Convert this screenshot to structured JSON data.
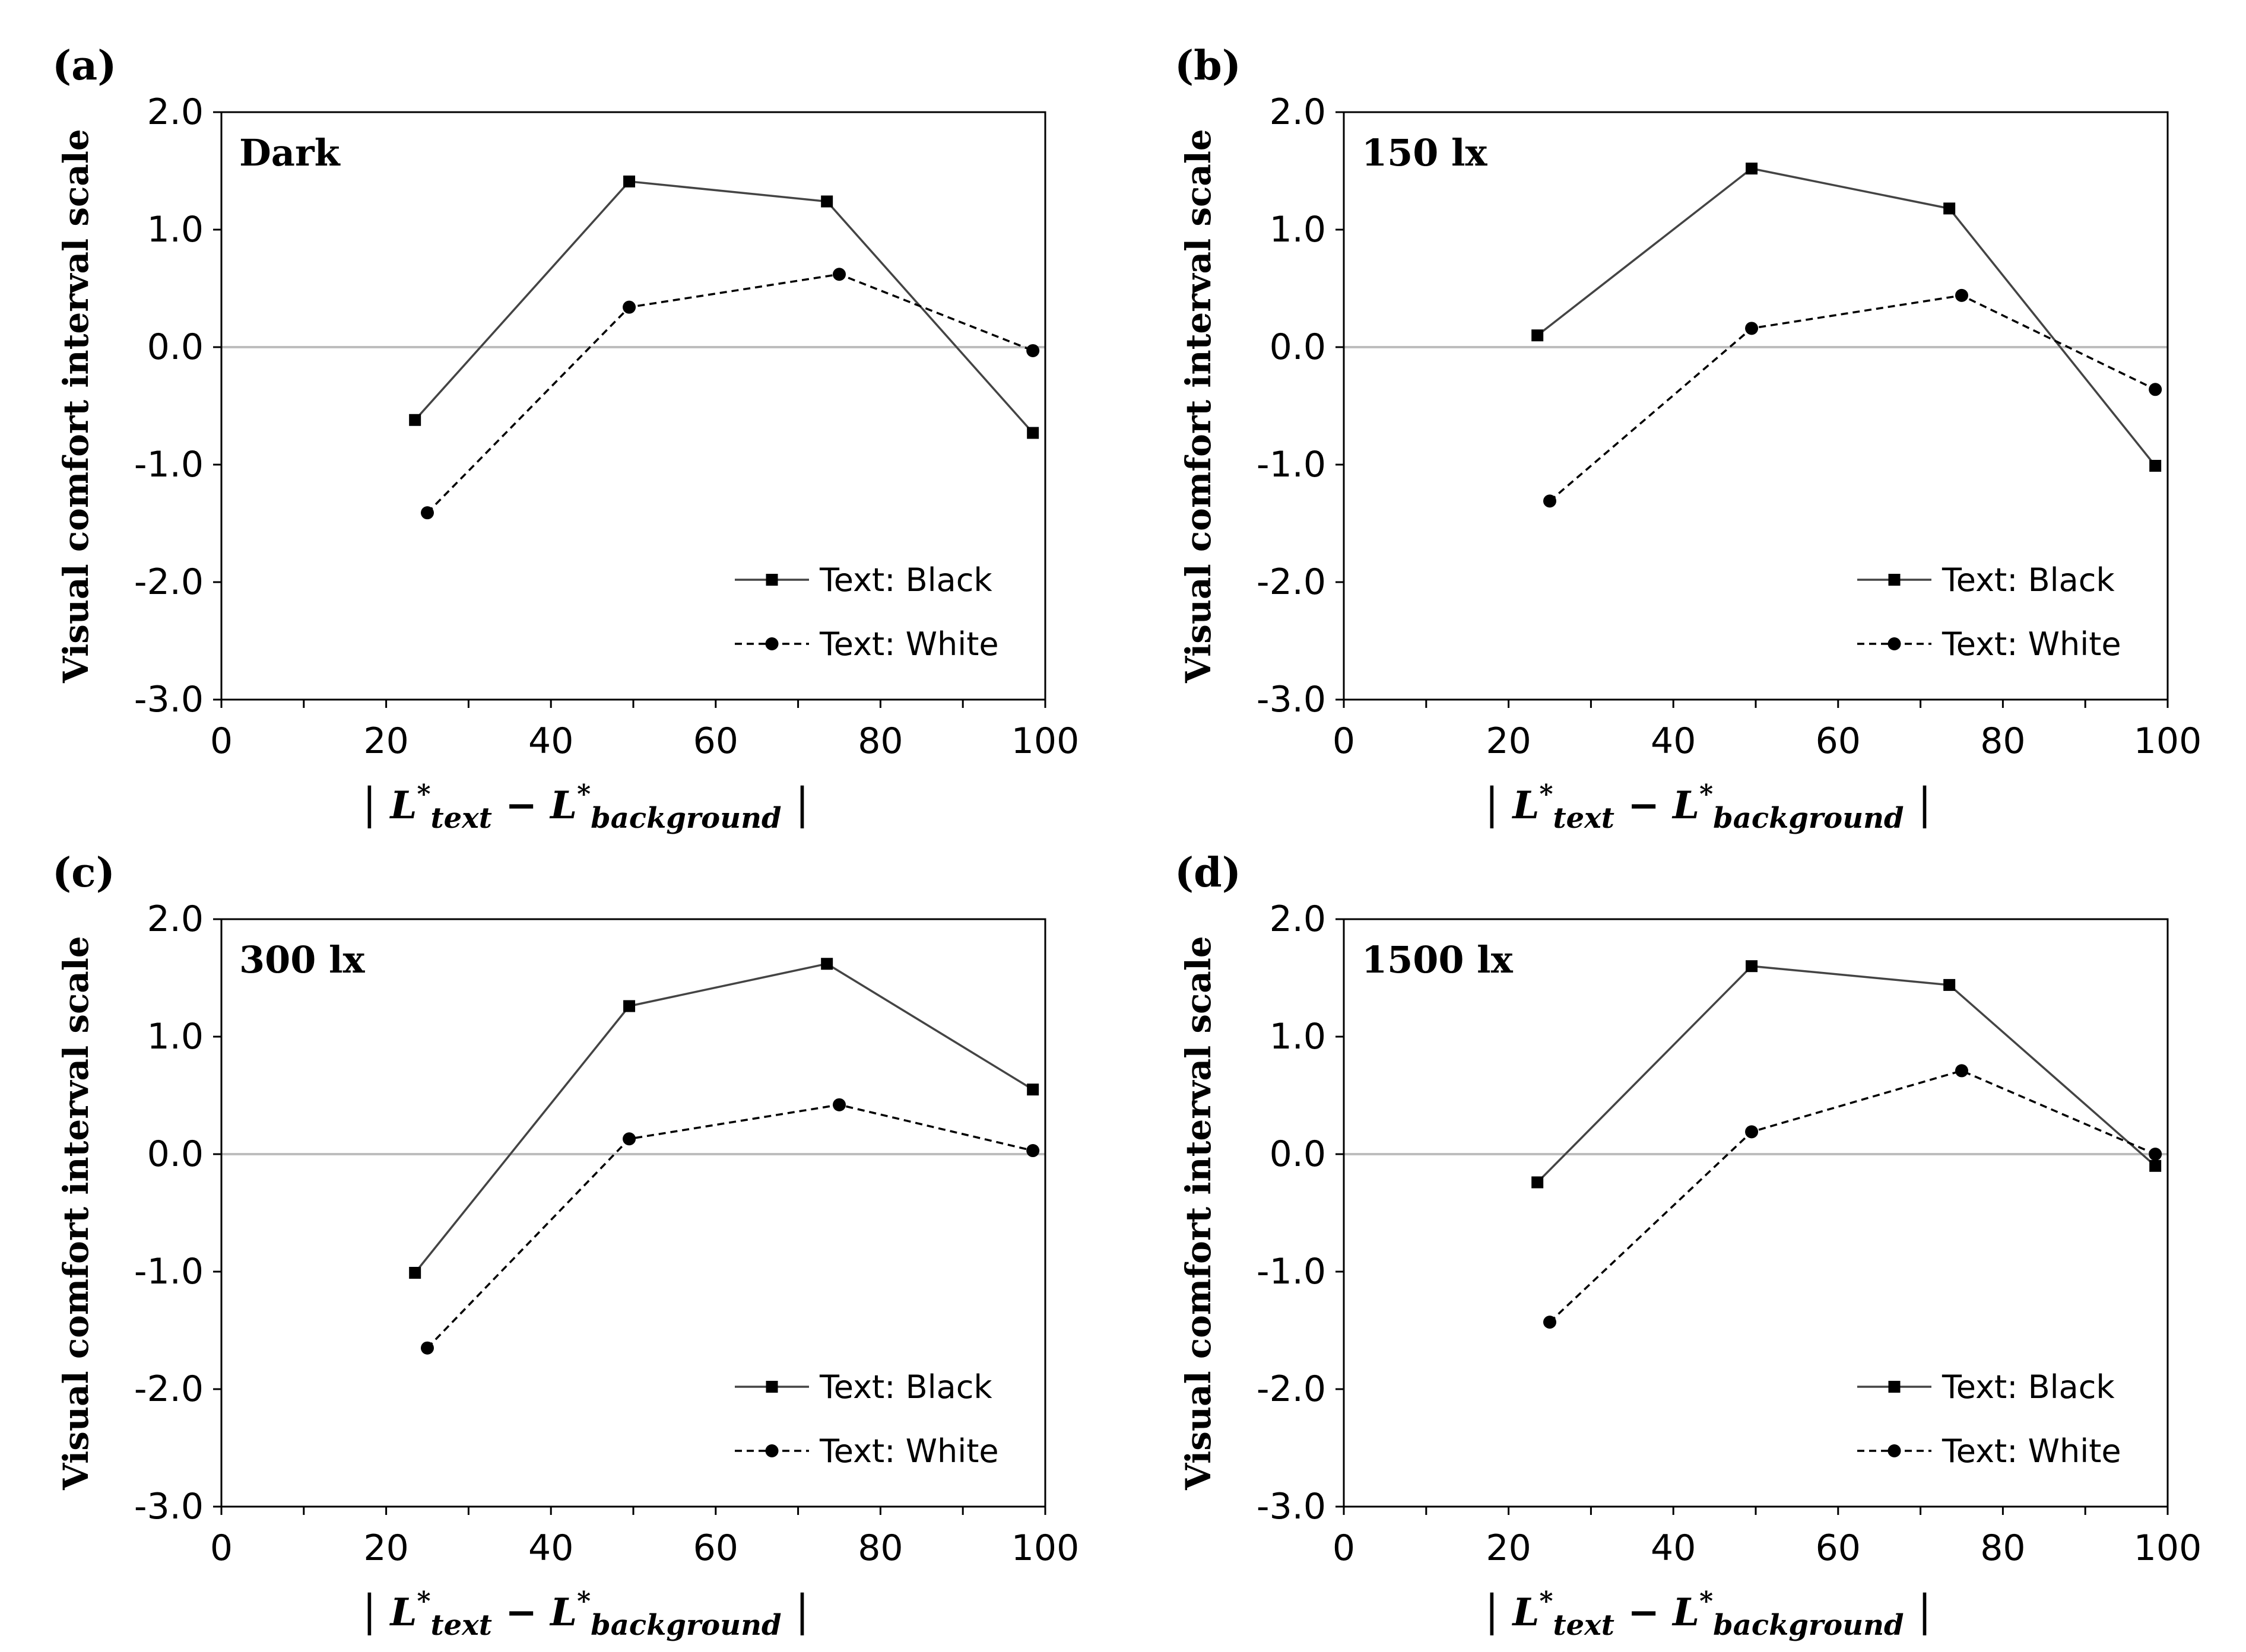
{
  "chart_data": [
    {
      "type": "line",
      "panel_label": "(a)",
      "condition": "Dark",
      "xlabel": "| L*text − L*background |",
      "ylabel": "Visual comfort interval scale",
      "xlim": [
        0,
        100
      ],
      "ylim": [
        -3.0,
        2.0
      ],
      "x_ticks": [
        0,
        20,
        40,
        60,
        80,
        100
      ],
      "y_ticks": [
        2.0,
        1.0,
        0.0,
        -1.0,
        -2.0,
        -3.0
      ],
      "y_tick_labels": [
        "2.0",
        "1.0",
        "0.0",
        "-1.0",
        "-2.0",
        "-3.0"
      ],
      "legend_position": "bottom-right",
      "series": [
        {
          "name": "Text: Black",
          "marker": "square",
          "line": "solid",
          "x": [
            23.5,
            49.5,
            73.5,
            98.5
          ],
          "y": [
            -0.62,
            1.41,
            1.24,
            -0.73
          ]
        },
        {
          "name": "Text: White",
          "marker": "circle",
          "line": "dashed",
          "x": [
            25,
            49.5,
            75,
            98.5
          ],
          "y": [
            -1.41,
            0.34,
            0.62,
            -0.03
          ]
        }
      ]
    },
    {
      "type": "line",
      "panel_label": "(b)",
      "condition": "150 lx",
      "xlabel": "| L*text − L*background |",
      "ylabel": "Visual comfort interval scale",
      "xlim": [
        0,
        100
      ],
      "ylim": [
        -3.0,
        2.0
      ],
      "x_ticks": [
        0,
        20,
        40,
        60,
        80,
        100
      ],
      "y_ticks": [
        2.0,
        1.0,
        0.0,
        -1.0,
        -2.0,
        -3.0
      ],
      "y_tick_labels": [
        "2.0",
        "1.0",
        "0.0",
        "-1.0",
        "-2.0",
        "-3.0"
      ],
      "legend_position": "bottom-right",
      "series": [
        {
          "name": "Text: Black",
          "marker": "square",
          "line": "solid",
          "x": [
            23.5,
            49.5,
            73.5,
            98.5
          ],
          "y": [
            0.1,
            1.52,
            1.18,
            -1.01
          ]
        },
        {
          "name": "Text: White",
          "marker": "circle",
          "line": "dashed",
          "x": [
            25,
            49.5,
            75,
            98.5
          ],
          "y": [
            -1.31,
            0.16,
            0.44,
            -0.36
          ]
        }
      ]
    },
    {
      "type": "line",
      "panel_label": "(c)",
      "condition": "300 lx",
      "xlabel": "| L*text − L*background |",
      "ylabel": "Visual comfort interval scale",
      "xlim": [
        0,
        100
      ],
      "ylim": [
        -3.0,
        2.0
      ],
      "x_ticks": [
        0,
        20,
        40,
        60,
        80,
        100
      ],
      "y_ticks": [
        2.0,
        1.0,
        0.0,
        -1.0,
        -2.0,
        -3.0
      ],
      "y_tick_labels": [
        "2.0",
        "1.0",
        "0.0",
        "-1.0",
        "-2.0",
        "-3.0"
      ],
      "legend_position": "bottom-right",
      "series": [
        {
          "name": "Text: Black",
          "marker": "square",
          "line": "solid",
          "x": [
            23.5,
            49.5,
            73.5,
            98.5
          ],
          "y": [
            -1.01,
            1.26,
            1.62,
            0.55
          ]
        },
        {
          "name": "Text: White",
          "marker": "circle",
          "line": "dashed",
          "x": [
            25,
            49.5,
            75,
            98.5
          ],
          "y": [
            -1.65,
            0.13,
            0.42,
            0.03
          ]
        }
      ]
    },
    {
      "type": "line",
      "panel_label": "(d)",
      "condition": "1500 lx",
      "xlabel": "| L*text − L*background |",
      "ylabel": "Visual comfort interval scale",
      "xlim": [
        0,
        100
      ],
      "ylim": [
        -3.0,
        2.0
      ],
      "x_ticks": [
        0,
        20,
        40,
        60,
        80,
        100
      ],
      "y_ticks": [
        2.0,
        1.0,
        0.0,
        -1.0,
        -2.0,
        -3.0
      ],
      "y_tick_labels": [
        "2.0",
        "1.0",
        "0.0",
        "-1.0",
        "-2.0",
        "-3.0"
      ],
      "legend_position": "bottom-right",
      "series": [
        {
          "name": "Text: Black",
          "marker": "square",
          "line": "solid",
          "x": [
            23.5,
            49.5,
            73.5,
            98.5
          ],
          "y": [
            -0.24,
            1.6,
            1.44,
            -0.1
          ]
        },
        {
          "name": "Text: White",
          "marker": "circle",
          "line": "dashed",
          "x": [
            25,
            49.5,
            75,
            98.5
          ],
          "y": [
            -1.43,
            0.19,
            0.71,
            0.0
          ]
        }
      ]
    }
  ]
}
